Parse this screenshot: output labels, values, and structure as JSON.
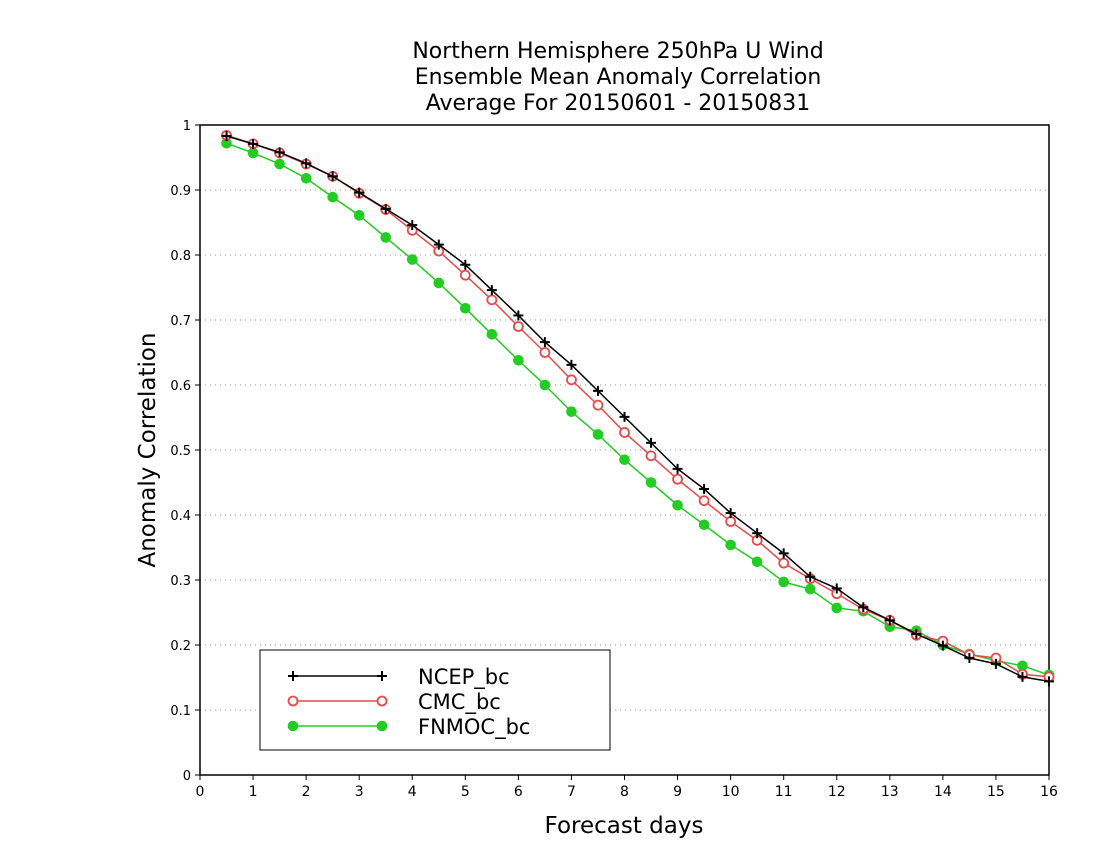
{
  "chart_data": {
    "type": "line",
    "title": [
      "Northern Hemisphere 250hPa U Wind",
      "Ensemble Mean Anomaly Correlation",
      "Average For 20150601 - 20150831"
    ],
    "xlabel": "Forecast days",
    "ylabel": "Anomaly Correlation",
    "xlim": [
      0,
      16
    ],
    "ylim": [
      0,
      1
    ],
    "xticks": [
      0,
      1,
      2,
      3,
      4,
      5,
      6,
      7,
      8,
      9,
      10,
      11,
      12,
      13,
      14,
      15,
      16
    ],
    "yticks": [
      0,
      0.1,
      0.2,
      0.3,
      0.4,
      0.5,
      0.6,
      0.7,
      0.8,
      0.9,
      1
    ],
    "grid": "horizontal dotted",
    "legend_position": "bottom-left",
    "x": [
      0.5,
      1,
      1.5,
      2,
      2.5,
      3,
      3.5,
      4,
      4.5,
      5,
      5.5,
      6,
      6.5,
      7,
      7.5,
      8,
      8.5,
      9,
      9.5,
      10,
      10.5,
      11,
      11.5,
      12,
      12.5,
      13,
      13.5,
      14,
      14.5,
      15,
      15.5,
      16
    ],
    "series": [
      {
        "name": "NCEP_bc",
        "color": "#000000",
        "marker": "plus",
        "values": [
          0.983,
          0.971,
          0.958,
          0.941,
          0.921,
          0.896,
          0.871,
          0.846,
          0.816,
          0.785,
          0.746,
          0.707,
          0.666,
          0.631,
          0.591,
          0.551,
          0.511,
          0.471,
          0.44,
          0.403,
          0.372,
          0.341,
          0.305,
          0.287,
          0.258,
          0.238,
          0.217,
          0.199,
          0.18,
          0.171,
          0.151,
          0.144
        ]
      },
      {
        "name": "CMC_bc",
        "color": "#e84a4a",
        "marker": "open-circle",
        "values": [
          0.984,
          0.971,
          0.957,
          0.94,
          0.921,
          0.895,
          0.87,
          0.838,
          0.806,
          0.769,
          0.731,
          0.69,
          0.65,
          0.608,
          0.569,
          0.527,
          0.491,
          0.455,
          0.422,
          0.39,
          0.361,
          0.326,
          0.302,
          0.279,
          0.255,
          0.238,
          0.215,
          0.206,
          0.185,
          0.18,
          0.155,
          0.151
        ]
      },
      {
        "name": "FNMOC_bc",
        "color": "#22cc22",
        "marker": "filled-circle",
        "values": [
          0.972,
          0.957,
          0.94,
          0.918,
          0.889,
          0.861,
          0.827,
          0.793,
          0.757,
          0.718,
          0.678,
          0.638,
          0.6,
          0.559,
          0.524,
          0.485,
          0.45,
          0.415,
          0.385,
          0.354,
          0.328,
          0.297,
          0.286,
          0.257,
          0.252,
          0.228,
          0.222,
          0.2,
          0.186,
          0.176,
          0.168,
          0.154
        ]
      }
    ]
  }
}
